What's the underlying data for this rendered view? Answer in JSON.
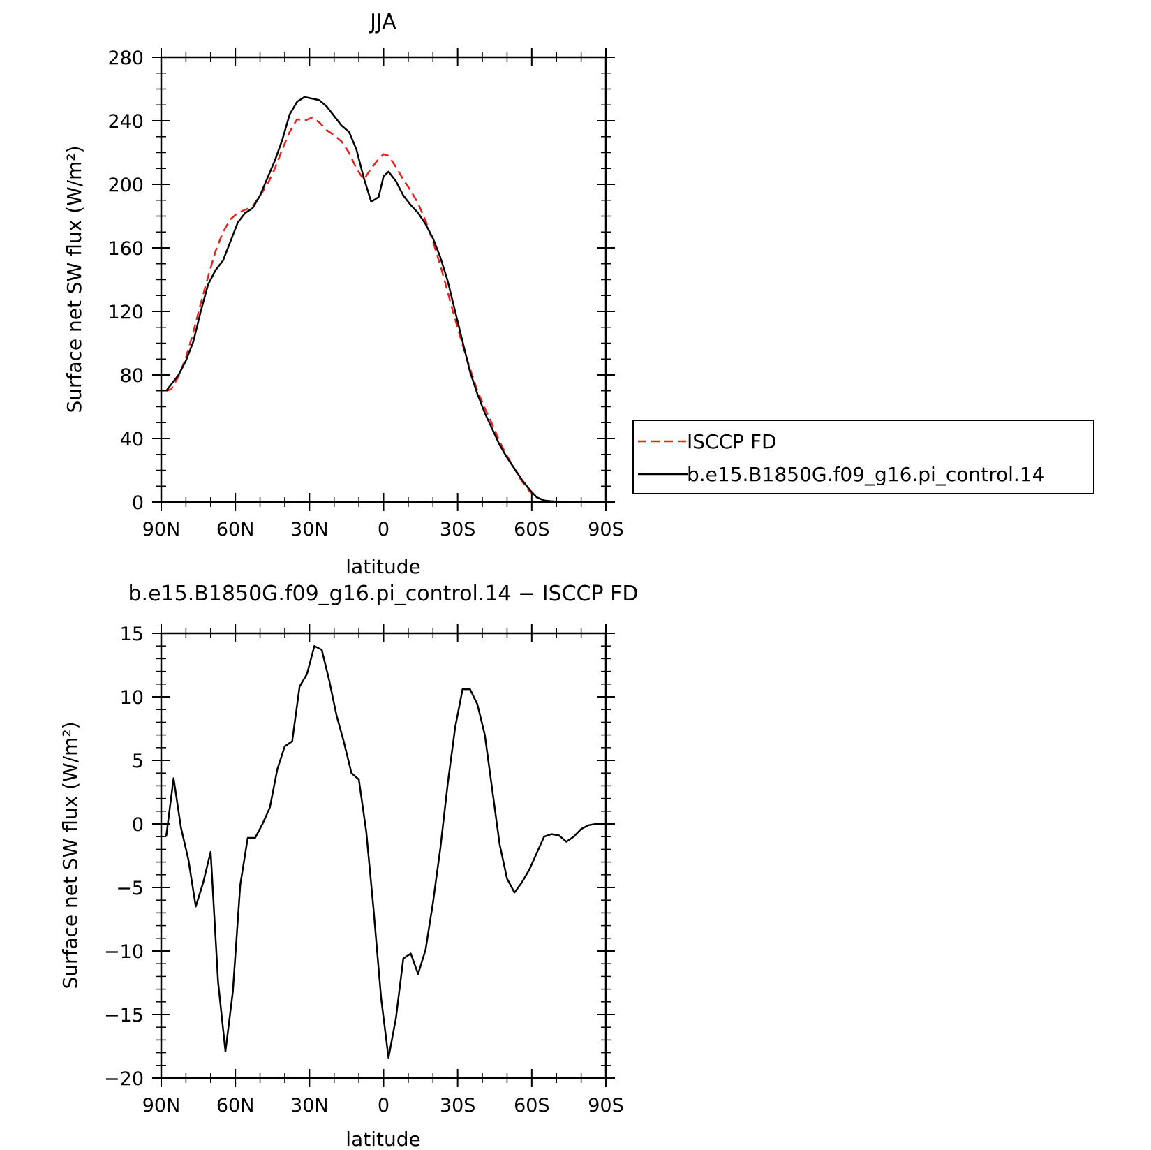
{
  "chart_data": [
    {
      "type": "line",
      "title": "JJA",
      "xlabel": "latitude",
      "ylabel": "Surface net SW flux (W/m²)",
      "xlim": [
        90,
        -90
      ],
      "ylim": [
        0,
        280
      ],
      "x_ticks": [
        90,
        60,
        30,
        0,
        -30,
        -60,
        -90
      ],
      "x_tick_labels": [
        "90N",
        "60N",
        "30N",
        "0",
        "30S",
        "60S",
        "90S"
      ],
      "y_ticks": [
        0,
        40,
        80,
        120,
        160,
        200,
        240,
        280
      ],
      "y_tick_labels": [
        "0",
        "40",
        "80",
        "120",
        "160",
        "200",
        "240",
        "280"
      ],
      "legend": "right",
      "grid": false,
      "series": [
        {
          "name": "ISCCP FD",
          "color": "#e8201c",
          "dash": "dashed",
          "x": [
            88,
            86,
            83,
            80,
            77,
            74,
            71,
            68,
            65,
            62,
            59,
            56,
            53,
            50,
            47,
            44,
            41,
            38,
            35,
            32,
            29,
            26,
            23,
            20,
            17,
            14,
            11,
            8,
            5,
            2,
            0,
            -2,
            -5,
            -8,
            -11,
            -14,
            -17,
            -20,
            -23,
            -26,
            -29,
            -32,
            -35,
            -38,
            -41,
            -44,
            -47,
            -50,
            -53,
            -56,
            -59,
            -62,
            -65,
            -68,
            -71,
            -74,
            -77,
            -80,
            -83,
            -86,
            -89
          ],
          "y": [
            70,
            71,
            79,
            91,
            107,
            125,
            142,
            158,
            170,
            178,
            182,
            184,
            186,
            193,
            200,
            210,
            222,
            233,
            241,
            240,
            242,
            239,
            234,
            231,
            227,
            220,
            210,
            203,
            210,
            216,
            219,
            218,
            211,
            203,
            196,
            188,
            177,
            164,
            149,
            132,
            115,
            99,
            84,
            70,
            59,
            49,
            38,
            29,
            21,
            13,
            7,
            3,
            1,
            0.5,
            0.2,
            0.1,
            0,
            0,
            0,
            0,
            0
          ]
        },
        {
          "name": "b.e15.B1850G.f09_g16.pi_control.14",
          "color": "#000000",
          "dash": "solid",
          "x": [
            88,
            86,
            83,
            80,
            77,
            74,
            71,
            68,
            65,
            62,
            59,
            56,
            53,
            50,
            47,
            44,
            41,
            38,
            35,
            32,
            29,
            26,
            23,
            20,
            17,
            14,
            11,
            8,
            5,
            2,
            0,
            -2,
            -5,
            -8,
            -11,
            -14,
            -17,
            -20,
            -23,
            -26,
            -29,
            -32,
            -35,
            -38,
            -41,
            -44,
            -47,
            -50,
            -53,
            -56,
            -59,
            -62,
            -65,
            -68,
            -71,
            -74,
            -77,
            -80,
            -83,
            -86,
            -89
          ],
          "y": [
            70,
            74,
            80,
            89,
            101,
            120,
            137,
            146,
            152,
            164,
            176,
            182,
            185,
            193,
            204,
            215,
            228,
            244,
            252,
            255,
            254,
            253,
            249,
            243,
            237,
            233,
            222,
            204,
            189,
            192,
            205,
            208,
            202,
            193,
            187,
            182,
            175,
            166,
            154,
            139,
            120,
            101,
            82,
            68,
            56,
            46,
            36,
            28,
            21,
            14,
            8,
            3,
            1,
            0.5,
            0.2,
            0.1,
            0,
            0,
            0,
            0,
            0
          ]
        }
      ]
    },
    {
      "type": "line",
      "title": "b.e15.B1850G.f09_g16.pi_control.14 − ISCCP FD",
      "xlabel": "latitude",
      "ylabel": "Surface net SW flux (W/m²)",
      "xlim": [
        90,
        -90
      ],
      "ylim": [
        -20,
        15
      ],
      "x_ticks": [
        90,
        60,
        30,
        0,
        -30,
        -60,
        -90
      ],
      "x_tick_labels": [
        "90N",
        "60N",
        "30N",
        "0",
        "30S",
        "60S",
        "90S"
      ],
      "y_ticks": [
        -20,
        -15,
        -10,
        -5,
        0,
        5,
        10,
        15
      ],
      "y_tick_labels": [
        "−20",
        "−15",
        "−10",
        "−5",
        "0",
        "5",
        "10",
        "15"
      ],
      "grid": false,
      "series": [
        {
          "color": "#000000",
          "dash": "solid",
          "x": [
            88,
            85,
            82,
            79,
            76,
            73,
            70,
            67,
            64,
            61,
            58,
            55,
            52,
            49,
            46,
            43,
            40,
            37,
            34,
            31,
            28,
            25,
            22,
            19,
            16,
            13,
            10,
            7,
            4,
            1,
            -2,
            -5,
            -8,
            -11,
            -14,
            -17,
            -20,
            -23,
            -26,
            -29,
            -32,
            -35,
            -38,
            -41,
            -44,
            -47,
            -50,
            -53,
            -56,
            -59,
            -62,
            -65,
            -68,
            -71,
            -74,
            -77,
            -80,
            -83,
            -86,
            -89
          ],
          "y": [
            -1.0,
            3.6,
            -0.3,
            -2.8,
            -6.5,
            -4.6,
            -2.2,
            -12.4,
            -17.9,
            -13.2,
            -4.8,
            -1.1,
            -1.1,
            0.0,
            1.3,
            4.3,
            6.1,
            6.5,
            10.8,
            11.8,
            14.0,
            13.7,
            11.3,
            8.5,
            6.4,
            4.0,
            3.5,
            -0.6,
            -6.8,
            -13.7,
            -18.4,
            -15.3,
            -10.6,
            -10.2,
            -11.8,
            -9.9,
            -6.2,
            -1.9,
            3.2,
            7.6,
            10.6,
            10.6,
            9.4,
            7.0,
            2.7,
            -1.6,
            -4.3,
            -5.4,
            -4.6,
            -3.6,
            -2.3,
            -1.0,
            -0.8,
            -0.9,
            -1.4,
            -1.0,
            -0.4,
            -0.1,
            0.0,
            0.0
          ]
        }
      ]
    }
  ]
}
